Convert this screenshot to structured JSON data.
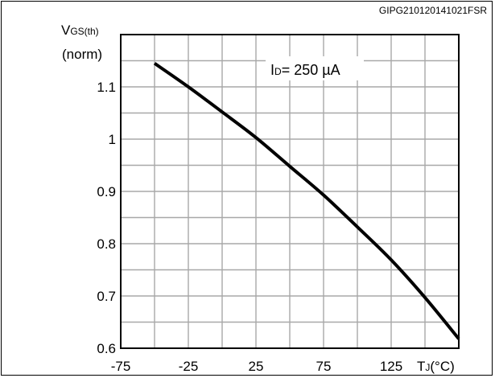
{
  "figure_id": "GIPG210120141021FSR",
  "chart_data": {
    "type": "line",
    "title": "",
    "ylabel": {
      "main": "V",
      "sub": "GS(th)",
      "unit": "(norm)"
    },
    "xlabel": {
      "main": "T",
      "sub": "J",
      "unit": "(°C)"
    },
    "annotation": {
      "main": "I",
      "sub": "D",
      "text": "= 250 µA"
    },
    "xlim": [
      -75,
      175
    ],
    "ylim": [
      0.6,
      1.2
    ],
    "x_ticks": [
      -75,
      -25,
      25,
      75,
      125
    ],
    "x_tick_labels": [
      "-75",
      "-25",
      "25",
      "75",
      "125"
    ],
    "y_ticks": [
      0.6,
      0.7,
      0.8,
      0.9,
      1.0,
      1.1
    ],
    "y_tick_labels": [
      "0.6",
      "0.7",
      "0.8",
      "0.9",
      "1",
      "1.1"
    ],
    "grid": true,
    "series": [
      {
        "color": "#000000",
        "x": [
          -50,
          -25,
          0,
          25,
          50,
          75,
          100,
          125,
          150,
          175
        ],
        "y": [
          1.145,
          1.1,
          1.052,
          1.003,
          0.948,
          0.893,
          0.832,
          0.769,
          0.697,
          0.618
        ]
      }
    ]
  }
}
